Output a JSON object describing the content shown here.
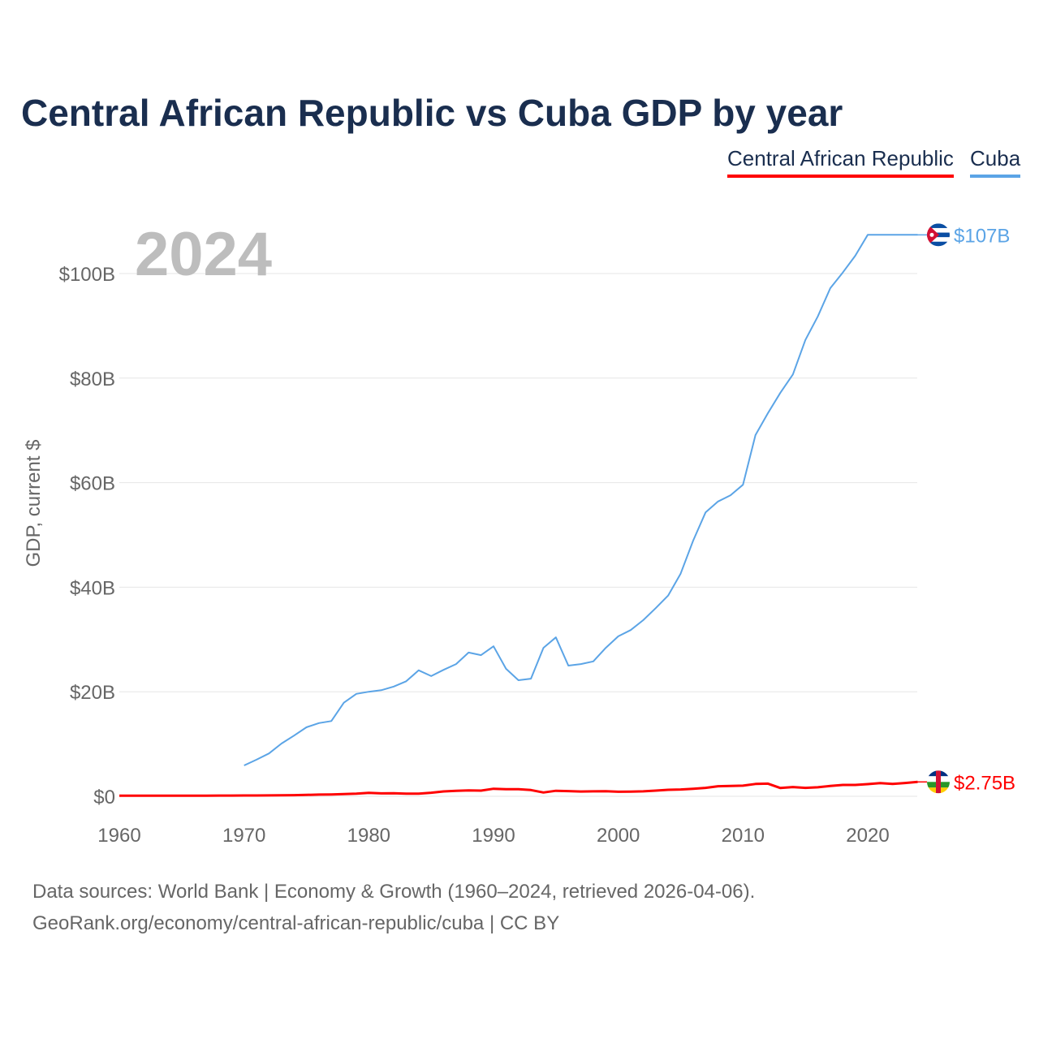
{
  "title": "Central African Republic vs Cuba GDP by year",
  "year_label": "2024",
  "footer": {
    "line1": "Data sources: World Bank | Economy & Growth (1960–2024, retrieved 2026-04-06).",
    "line2": "GeoRank.org/economy/central-african-republic/cuba | CC BY"
  },
  "chart_data": {
    "type": "line",
    "title": "Central African Republic vs Cuba GDP by year",
    "xlabel": "",
    "ylabel": "GDP, current $",
    "xlim": [
      1960,
      2024
    ],
    "ylim": [
      0,
      110
    ],
    "grid": true,
    "legend": "top-right",
    "x_ticks": [
      1960,
      1970,
      1980,
      1990,
      2000,
      2010,
      2020
    ],
    "y_ticks": [
      0,
      20,
      40,
      60,
      80,
      100
    ],
    "y_tick_labels": [
      "$0",
      "$20B",
      "$40B",
      "$60B",
      "$80B",
      "$100B"
    ],
    "x_start": 1960,
    "series": [
      {
        "name": "Central African Republic",
        "color": "#ff0000",
        "end_label": "$2.75B",
        "flag": "central-african-republic",
        "values": [
          0.11,
          0.11,
          0.11,
          0.11,
          0.12,
          0.12,
          0.12,
          0.13,
          0.14,
          0.14,
          0.15,
          0.16,
          0.17,
          0.19,
          0.21,
          0.27,
          0.33,
          0.36,
          0.44,
          0.52,
          0.66,
          0.56,
          0.59,
          0.52,
          0.49,
          0.69,
          0.93,
          1.04,
          1.12,
          1.09,
          1.44,
          1.37,
          1.35,
          1.2,
          0.73,
          1.05,
          0.99,
          0.92,
          0.94,
          0.96,
          0.87,
          0.88,
          0.95,
          1.08,
          1.24,
          1.3,
          1.44,
          1.62,
          1.93,
          1.97,
          2.04,
          2.36,
          2.43,
          1.59,
          1.77,
          1.62,
          1.72,
          1.97,
          2.17,
          2.17,
          2.33,
          2.52,
          2.38,
          2.55,
          2.75
        ]
      },
      {
        "name": "Cuba",
        "color": "#5ba4e6",
        "end_label": "$107B",
        "flag": "cuba",
        "values": [
          null,
          null,
          null,
          null,
          null,
          null,
          null,
          null,
          null,
          null,
          5.9,
          7.0,
          8.2,
          10.1,
          11.6,
          13.2,
          14.0,
          14.4,
          17.9,
          19.6,
          20.0,
          20.3,
          21.0,
          22.0,
          24.1,
          23.0,
          24.2,
          25.3,
          27.5,
          27.0,
          28.7,
          24.4,
          22.2,
          22.5,
          28.4,
          30.4,
          25.0,
          25.3,
          25.8,
          28.4,
          30.6,
          31.8,
          33.7,
          36.0,
          38.4,
          42.6,
          48.9,
          54.3,
          56.4,
          57.6,
          59.6,
          69.1,
          73.3,
          77.2,
          80.7,
          87.3,
          91.8,
          97.2,
          100.2,
          103.4,
          107.4,
          107.4,
          107.4,
          107.4,
          107.4
        ]
      }
    ]
  }
}
